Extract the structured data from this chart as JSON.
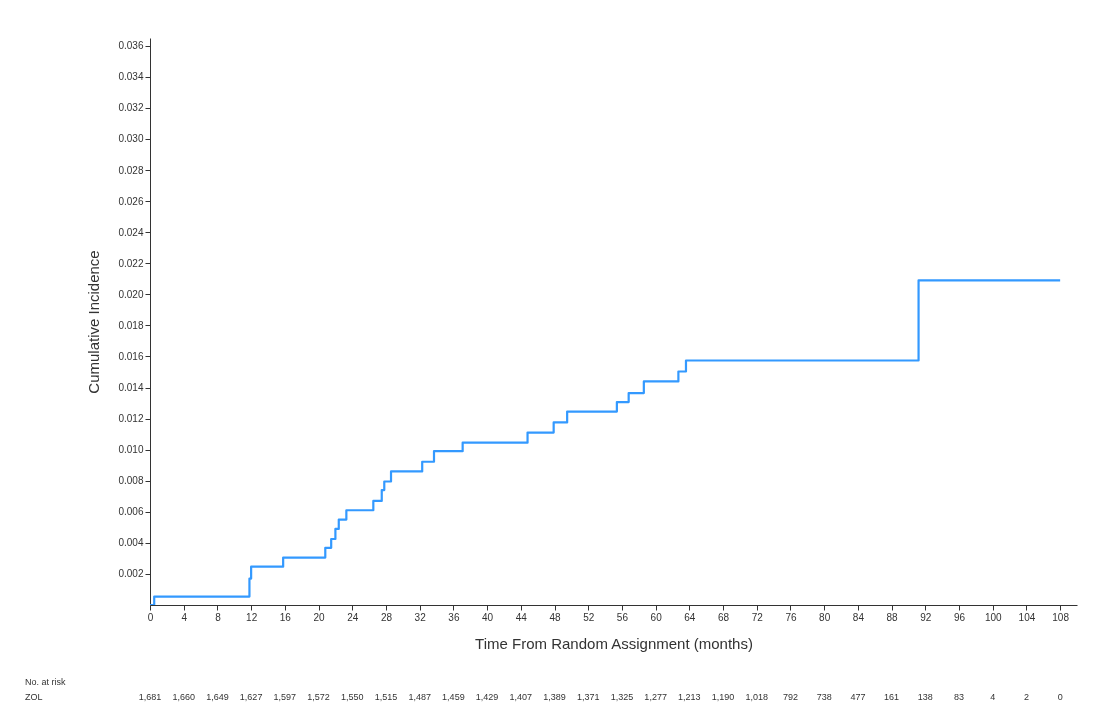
{
  "chart_data": {
    "type": "step",
    "xlabel": "Time From Random Assignment (months)",
    "ylabel": "Cumulative Incidence",
    "x": [
      0,
      0.5,
      11.8,
      12,
      15.8,
      20.8,
      21.5,
      22,
      22.4,
      23.3,
      26.5,
      27.5,
      27.8,
      28.6,
      32.3,
      33.7,
      37.1,
      44.8,
      47.9,
      49.5,
      55.4,
      56.8,
      58.6,
      62.7,
      63.6,
      91.2,
      108
    ],
    "series": [
      {
        "color": "#3399ff",
        "values": [
          0,
          0.00054,
          0.0017,
          0.00247,
          0.00305,
          0.00368,
          0.00425,
          0.0049,
          0.0055,
          0.0061,
          0.0067,
          0.0074,
          0.00795,
          0.0086,
          0.00922,
          0.0099,
          0.01045,
          0.0111,
          0.01175,
          0.01245,
          0.01306,
          0.01364,
          0.01439,
          0.01503,
          0.01574,
          0.0209,
          0.0209
        ]
      }
    ],
    "xlim": [
      0,
      110
    ],
    "xticks": [
      0,
      4,
      8,
      12,
      16,
      20,
      24,
      28,
      32,
      36,
      40,
      44,
      48,
      52,
      56,
      60,
      64,
      68,
      72,
      76,
      80,
      84,
      88,
      92,
      96,
      100,
      104,
      108
    ],
    "ylim": [
      0,
      0.0365
    ],
    "yticks": [
      0.002,
      0.004,
      0.006,
      0.008,
      {
        "value": 0.01,
        "label": "0.010"
      },
      0.012,
      0.014,
      0.016,
      0.018,
      {
        "value": 0.02,
        "label": "0.020"
      },
      0.022,
      0.024,
      0.026,
      0.028,
      {
        "value": 0.03,
        "label": "0.030"
      },
      0.032,
      0.034,
      0.036
    ],
    "grid": false,
    "marker": "none",
    "line_style": "solid",
    "annotations": [
      "No. at risk",
      "ZOL",
      "1,681",
      "1,660",
      "1,649",
      "1,627",
      "1,597",
      "1,572",
      "1,550",
      "1,515",
      "1,487",
      "1,459",
      "1,429",
      "1,407",
      "1,389",
      "1,371",
      "1,325",
      "1,277",
      "1,213",
      "1,190",
      "1,018",
      "792",
      "738",
      "477",
      "161",
      "138",
      "83",
      "4",
      "2",
      "0"
    ]
  }
}
